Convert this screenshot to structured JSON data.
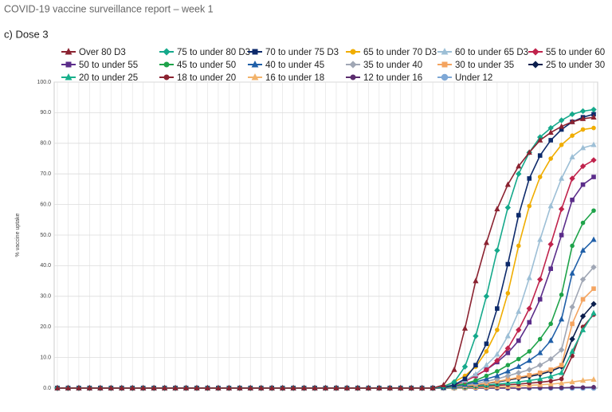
{
  "report_header": "COVID-19 vaccine surveillance report – week 1",
  "chart_data": {
    "type": "line",
    "title": "c) Dose 3",
    "y_label": "% vaccine uptake",
    "categories": [
      null,
      null,
      null,
      null,
      null,
      null,
      null,
      null,
      null,
      null,
      null,
      null,
      null,
      null,
      null,
      null,
      null,
      null,
      null,
      null,
      null,
      null,
      null,
      null,
      null,
      null,
      null,
      null,
      null,
      null,
      null,
      null,
      null,
      null,
      null,
      null,
      null,
      null,
      null,
      null,
      null,
      null,
      null,
      null,
      null,
      null,
      null,
      null,
      null,
      null,
      null
    ],
    "ylim": [
      0,
      100
    ],
    "yticks": [
      {
        "value": 0,
        "label": "0.0"
      },
      {
        "value": 10,
        "label": "10.0"
      },
      {
        "value": 20,
        "label": "20.0"
      },
      {
        "value": 30,
        "label": "30.0"
      },
      {
        "value": 40,
        "label": "40.0"
      },
      {
        "value": 50,
        "label": "50.0"
      },
      {
        "value": 60,
        "label": "60.0"
      },
      {
        "value": 70,
        "label": "70.0"
      },
      {
        "value": 80,
        "label": "80.0"
      },
      {
        "value": 90,
        "label": "90.0"
      },
      {
        "value": 100,
        "label": "100.0"
      }
    ],
    "grid": true,
    "legend": "top",
    "series": [
      {
        "name": "Over 80 D3",
        "color": "#8b2331",
        "marker": "triangle",
        "values": [
          0,
          0,
          0,
          0,
          0,
          0,
          0,
          0,
          0,
          0,
          0,
          0,
          0,
          0,
          0,
          0,
          0,
          0,
          0,
          0,
          0,
          0,
          0,
          0,
          0,
          0,
          0,
          0,
          0,
          0,
          0,
          0,
          0,
          0,
          0,
          0,
          1,
          6,
          19.5,
          35,
          47.5,
          58.5,
          66.5,
          72.5,
          77,
          81,
          83.5,
          85.5,
          87,
          88,
          88.5
        ]
      },
      {
        "name": "75 to under 80 D3",
        "color": "#15a98b",
        "marker": "diamond",
        "values": [
          0,
          0,
          0,
          0,
          0,
          0,
          0,
          0,
          0,
          0,
          0,
          0,
          0,
          0,
          0,
          0,
          0,
          0,
          0,
          0,
          0,
          0,
          0,
          0,
          0,
          0,
          0,
          0,
          0,
          0,
          0,
          0,
          0,
          0,
          0,
          0,
          0.5,
          2,
          7,
          17,
          30,
          45,
          59,
          70,
          77,
          82,
          85,
          87.5,
          89.5,
          90.5,
          91
        ]
      },
      {
        "name": "70 to under 75 D3",
        "color": "#0d2a6b",
        "marker": "square",
        "values": [
          0,
          0,
          0,
          0,
          0,
          0,
          0,
          0,
          0,
          0,
          0,
          0,
          0,
          0,
          0,
          0,
          0,
          0,
          0,
          0,
          0,
          0,
          0,
          0,
          0,
          0,
          0,
          0,
          0,
          0,
          0,
          0,
          0,
          0,
          0,
          0,
          0.3,
          1,
          3,
          7.5,
          14.5,
          26,
          40.5,
          56.5,
          68.5,
          76,
          81,
          84.5,
          87,
          88.5,
          89.5
        ]
      },
      {
        "name": "65 to under 70 D3",
        "color": "#f0ad00",
        "marker": "circle",
        "values": [
          0,
          0,
          0,
          0,
          0,
          0,
          0,
          0,
          0,
          0,
          0,
          0,
          0,
          0,
          0,
          0,
          0,
          0,
          0,
          0,
          0,
          0,
          0,
          0,
          0,
          0,
          0,
          0,
          0,
          0,
          0,
          0,
          0,
          0,
          0,
          0,
          0.6,
          2,
          4,
          7,
          12,
          19,
          31,
          46.5,
          59.5,
          69,
          75,
          79.5,
          82.5,
          84.5,
          85
        ]
      },
      {
        "name": "60 to under 65 D3",
        "color": "#9dbfd6",
        "marker": "triangle",
        "values": [
          0,
          0,
          0,
          0,
          0,
          0,
          0,
          0,
          0,
          0,
          0,
          0,
          0,
          0,
          0,
          0,
          0,
          0,
          0,
          0,
          0,
          0,
          0,
          0,
          0,
          0,
          0,
          0,
          0,
          0,
          0,
          0,
          0,
          0,
          0,
          0,
          0.4,
          1.2,
          2.5,
          4.5,
          7.5,
          11,
          17,
          25,
          36,
          48.5,
          59.5,
          68.5,
          75.5,
          78.5,
          79.5
        ]
      },
      {
        "name": "55 to under 60",
        "color": "#c0234c",
        "marker": "diamond",
        "values": [
          0,
          0,
          0,
          0,
          0,
          0,
          0,
          0,
          0,
          0,
          0,
          0,
          0,
          0,
          0,
          0,
          0,
          0,
          0,
          0,
          0,
          0,
          0,
          0,
          0,
          0,
          0,
          0,
          0,
          0,
          0,
          0,
          0,
          0,
          0,
          0,
          0.3,
          1,
          2.2,
          4,
          6,
          9,
          13,
          19,
          26,
          35.5,
          47,
          58.5,
          68.5,
          72.5,
          74.5
        ]
      },
      {
        "name": "50 to under 55",
        "color": "#5b2d8a",
        "marker": "square",
        "values": [
          0,
          0,
          0,
          0,
          0,
          0,
          0,
          0,
          0,
          0,
          0,
          0,
          0,
          0,
          0,
          0,
          0,
          0,
          0,
          0,
          0,
          0,
          0,
          0,
          0,
          0,
          0,
          0,
          0,
          0,
          0,
          0,
          0,
          0,
          0,
          0,
          0.3,
          1.2,
          2.5,
          4,
          6,
          8.5,
          11.5,
          15.5,
          21.5,
          29,
          39,
          50,
          61.5,
          66.5,
          69
        ]
      },
      {
        "name": "45 to under 50",
        "color": "#1fa34a",
        "marker": "circle",
        "values": [
          0,
          0,
          0,
          0,
          0,
          0,
          0,
          0,
          0,
          0,
          0,
          0,
          0,
          0,
          0,
          0,
          0,
          0,
          0,
          0,
          0,
          0,
          0,
          0,
          0,
          0,
          0,
          0,
          0,
          0,
          0,
          0,
          0,
          0,
          0,
          0,
          0.2,
          0.7,
          1.5,
          2.5,
          4,
          5.5,
          7.5,
          9.5,
          12,
          16,
          21,
          30.5,
          46.5,
          54,
          58
        ]
      },
      {
        "name": "40 to under 45",
        "color": "#1f5fa8",
        "marker": "triangle",
        "values": [
          0,
          0,
          0,
          0,
          0,
          0,
          0,
          0,
          0,
          0,
          0,
          0,
          0,
          0,
          0,
          0,
          0,
          0,
          0,
          0,
          0,
          0,
          0,
          0,
          0,
          0,
          0,
          0,
          0,
          0,
          0,
          0,
          0,
          0,
          0,
          0,
          0.1,
          0.5,
          1.2,
          2,
          3,
          4,
          5.5,
          7,
          9,
          11.5,
          15.5,
          22.5,
          37.5,
          45,
          48.5
        ]
      },
      {
        "name": "35 to under 40",
        "color": "#a0a7b5",
        "marker": "diamond",
        "values": [
          0,
          0,
          0,
          0,
          0,
          0,
          0,
          0,
          0,
          0,
          0,
          0,
          0,
          0,
          0,
          0,
          0,
          0,
          0,
          0,
          0,
          0,
          0,
          0,
          0,
          0,
          0,
          0,
          0,
          0,
          0,
          0,
          0,
          0,
          0,
          0,
          0.1,
          0.4,
          0.9,
          1.5,
          2.2,
          3,
          4,
          5,
          6,
          7.5,
          9.5,
          12.5,
          26.5,
          35.5,
          39.5
        ]
      },
      {
        "name": "30 to under 35",
        "color": "#f4a460",
        "marker": "square",
        "values": [
          0,
          0,
          0,
          0,
          0,
          0,
          0,
          0,
          0,
          0,
          0,
          0,
          0,
          0,
          0,
          0,
          0,
          0,
          0,
          0,
          0,
          0,
          0,
          0,
          0,
          0,
          0,
          0,
          0,
          0,
          0,
          0,
          0,
          0,
          0,
          0,
          0.1,
          0.3,
          0.7,
          1.1,
          1.6,
          2.2,
          2.8,
          3.5,
          4.2,
          5,
          6,
          7.5,
          21,
          29,
          32.5
        ]
      },
      {
        "name": "25 to under 30",
        "color": "#0b1f4d",
        "marker": "diamond",
        "values": [
          0,
          0,
          0,
          0,
          0,
          0,
          0,
          0,
          0,
          0,
          0,
          0,
          0,
          0,
          0,
          0,
          0,
          0,
          0,
          0,
          0,
          0,
          0,
          0,
          0,
          0,
          0,
          0,
          0,
          0,
          0,
          0,
          0,
          0,
          0,
          0,
          0.1,
          0.3,
          0.6,
          1,
          1.5,
          2,
          2.6,
          3.2,
          3.8,
          4.5,
          5.5,
          7,
          16,
          23.5,
          27.5
        ]
      },
      {
        "name": "20 to under 25",
        "color": "#19b08c",
        "marker": "triangle",
        "values": [
          0,
          0,
          0,
          0,
          0,
          0,
          0,
          0,
          0,
          0,
          0,
          0,
          0,
          0,
          0,
          0,
          0,
          0,
          0,
          0,
          0,
          0,
          0,
          0,
          0,
          0,
          0,
          0,
          0,
          0,
          0,
          0,
          0,
          0,
          0,
          0,
          0.1,
          0.2,
          0.4,
          0.7,
          1,
          1.3,
          1.6,
          2,
          2.5,
          3,
          3.8,
          5,
          12,
          19,
          24.5
        ]
      },
      {
        "name": "18 to under 20",
        "color": "#8b2331",
        "marker": "circle",
        "values": [
          0,
          0,
          0,
          0,
          0,
          0,
          0,
          0,
          0,
          0,
          0,
          0,
          0,
          0,
          0,
          0,
          0,
          0,
          0,
          0,
          0,
          0,
          0,
          0,
          0,
          0,
          0,
          0,
          0,
          0,
          0,
          0,
          0,
          0,
          0,
          0,
          0.1,
          0.2,
          0.3,
          0.5,
          0.7,
          0.9,
          1.1,
          1.3,
          1.6,
          1.9,
          2.3,
          3,
          10.5,
          20,
          24
        ]
      },
      {
        "name": "16 to under 18",
        "color": "#f2b36b",
        "marker": "triangle",
        "values": [
          0,
          0,
          0,
          0,
          0,
          0,
          0,
          0,
          0,
          0,
          0,
          0,
          0,
          0,
          0,
          0,
          0,
          0,
          0,
          0,
          0,
          0,
          0,
          0,
          0,
          0,
          0,
          0,
          0,
          0,
          0,
          0,
          0,
          0,
          0,
          0,
          0,
          0.05,
          0.1,
          0.2,
          0.3,
          0.4,
          0.5,
          0.7,
          0.9,
          1.1,
          1.3,
          1.6,
          2,
          2.5,
          2.8
        ]
      },
      {
        "name": "12 to under 16",
        "color": "#5b2d6e",
        "marker": "circle",
        "values": [
          0,
          0,
          0,
          0,
          0,
          0,
          0,
          0,
          0,
          0,
          0,
          0,
          0,
          0,
          0,
          0,
          0,
          0,
          0,
          0,
          0,
          0,
          0,
          0,
          0,
          0,
          0,
          0,
          0,
          0,
          0,
          0,
          0,
          0,
          0,
          0,
          0,
          0,
          0,
          0,
          0,
          0,
          0,
          0,
          0.1,
          0.1,
          0.1,
          0.1,
          0.2,
          0.2,
          0.3
        ]
      },
      {
        "name": "Under 12",
        "color": "#7fa8d6",
        "marker": "big-circle",
        "values": [
          0,
          0,
          0,
          0,
          0,
          0,
          0,
          0,
          0,
          0,
          0,
          0,
          0,
          0,
          0,
          0,
          0,
          0,
          0,
          0,
          0,
          0,
          0,
          0,
          0,
          0,
          0,
          0,
          0,
          0,
          0,
          0,
          0,
          0,
          0,
          0,
          0,
          0,
          0,
          0,
          0,
          0,
          0,
          0,
          0,
          0,
          0,
          0,
          0,
          0,
          0
        ]
      }
    ]
  }
}
